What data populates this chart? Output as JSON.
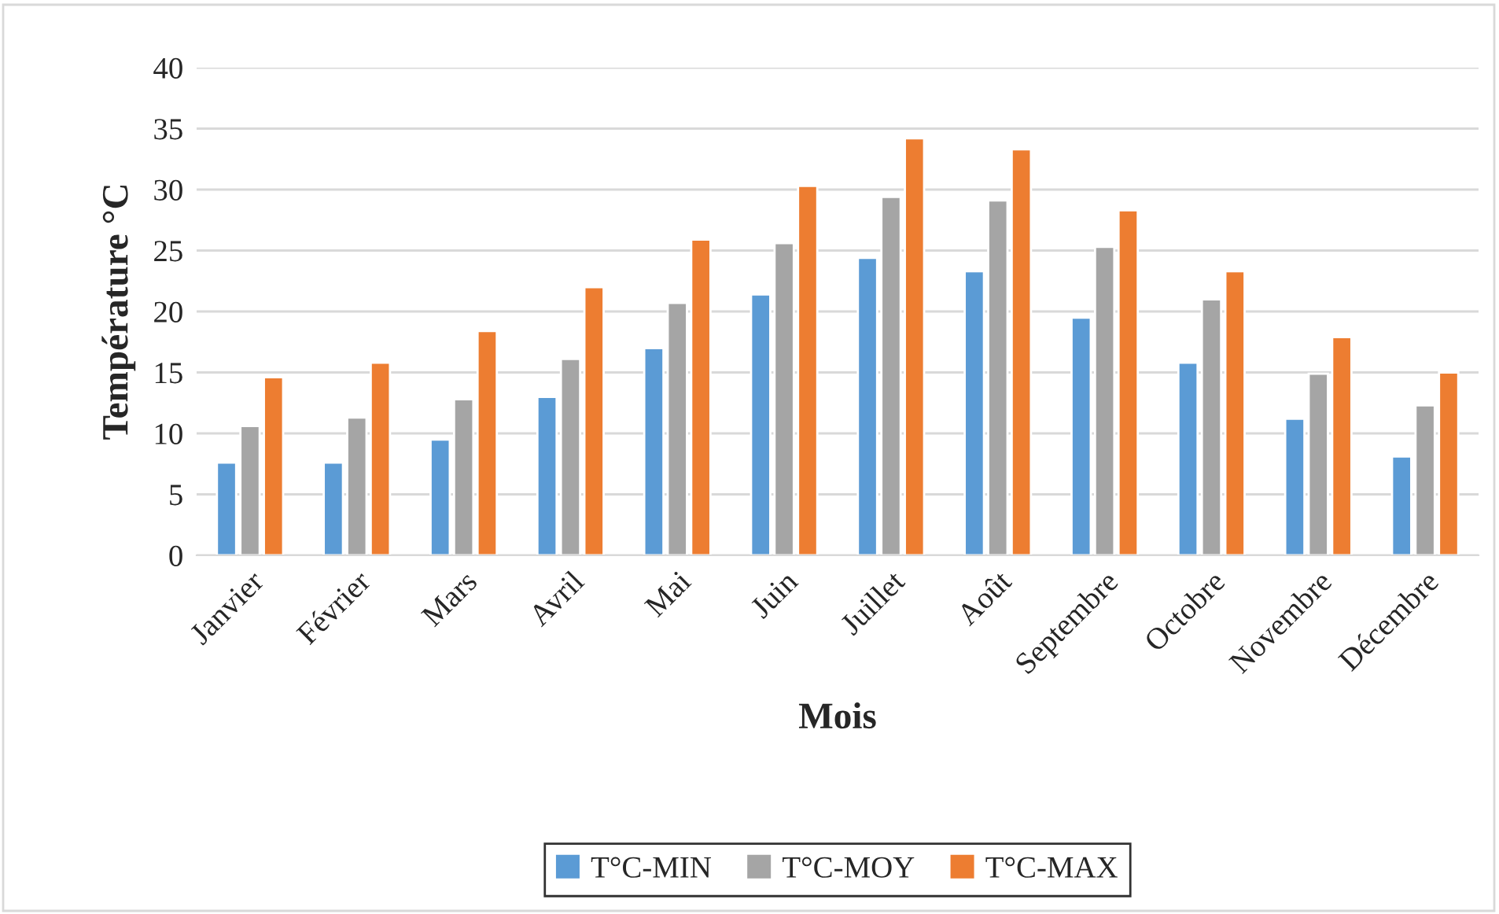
{
  "chart_data": {
    "type": "bar",
    "xlabel": "Mois",
    "ylabel": "Température °C",
    "categories": [
      "Janvier",
      "Février",
      "Mars",
      "Avril",
      "Mai",
      "Juin",
      "Juillet",
      "Août",
      "Septembre",
      "Octobre",
      "Novembre",
      "Décembre"
    ],
    "series": [
      {
        "name": "T°C-MIN",
        "color": "#5b9bd5",
        "values": [
          7.6,
          7.6,
          9.5,
          13.0,
          17.0,
          21.4,
          24.4,
          23.3,
          19.5,
          15.8,
          11.2,
          8.1
        ]
      },
      {
        "name": "T°C-MOY",
        "color": "#a5a5a5",
        "values": [
          10.6,
          11.3,
          12.8,
          16.1,
          20.7,
          25.6,
          29.4,
          29.1,
          25.3,
          21.0,
          14.9,
          12.3
        ]
      },
      {
        "name": "T°C-MAX",
        "color": "#ed7d31",
        "values": [
          14.6,
          15.8,
          18.4,
          22.0,
          25.9,
          30.3,
          34.2,
          33.3,
          28.3,
          23.3,
          17.9,
          15.0
        ]
      }
    ],
    "ylim": [
      0,
      40
    ],
    "yticks": [
      0,
      5,
      10,
      15,
      20,
      25,
      30,
      35,
      40
    ],
    "grid": "y",
    "legend": "bottom"
  }
}
